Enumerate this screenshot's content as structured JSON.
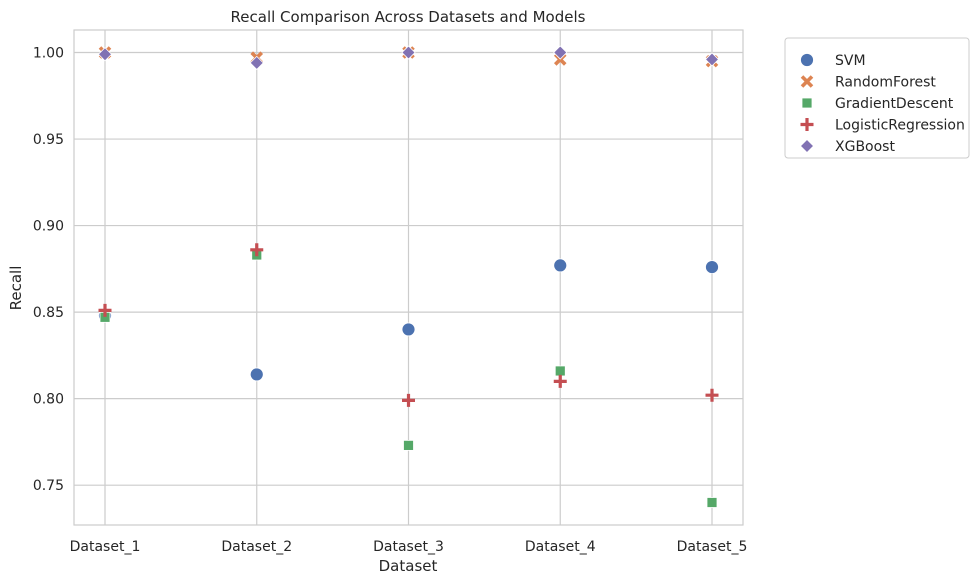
{
  "chart_data": {
    "type": "scatter",
    "title": "Recall Comparison Across Datasets and Models",
    "xlabel": "Dataset",
    "ylabel": "Recall",
    "categories": [
      "Dataset_1",
      "Dataset_2",
      "Dataset_3",
      "Dataset_4",
      "Dataset_5"
    ],
    "ylim": [
      0.727,
      1.013
    ],
    "yticks": [
      "0.75",
      "0.80",
      "0.85",
      "0.90",
      "0.95",
      "1.00"
    ],
    "grid": true,
    "legend_position": "outside-right",
    "series": [
      {
        "name": "SVM",
        "marker": "circle",
        "color": "#4c72b0",
        "values": [
          0.848,
          0.814,
          0.84,
          0.877,
          0.876
        ]
      },
      {
        "name": "RandomForest",
        "marker": "x",
        "color": "#dd8452",
        "values": [
          1.0,
          0.997,
          1.0,
          0.996,
          0.995
        ]
      },
      {
        "name": "GradientDescent",
        "marker": "square",
        "color": "#55a868",
        "values": [
          0.847,
          0.883,
          0.773,
          0.816,
          0.74
        ]
      },
      {
        "name": "LogisticRegression",
        "marker": "plus",
        "color": "#c44e52",
        "values": [
          0.851,
          0.886,
          0.799,
          0.81,
          0.802
        ]
      },
      {
        "name": "XGBoost",
        "marker": "diamond",
        "color": "#8172b3",
        "values": [
          0.999,
          0.994,
          1.0,
          1.0,
          0.996
        ]
      }
    ]
  }
}
